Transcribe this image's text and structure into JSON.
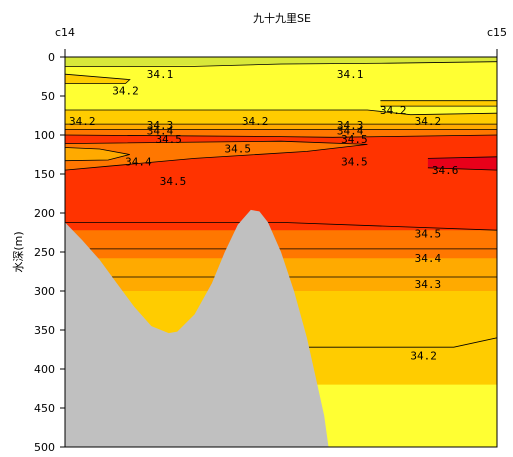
{
  "chart_data": {
    "type": "contour",
    "title": "九十九里SE",
    "ylabel": "水深(m)",
    "stations": [
      "c14",
      "c15"
    ],
    "y_ticks": [
      0,
      50,
      100,
      150,
      200,
      250,
      300,
      350,
      400,
      450,
      500
    ],
    "ylim": [
      0,
      500
    ],
    "y_inverted": true,
    "contour_levels": [
      34.1,
      34.2,
      34.3,
      34.4,
      34.5,
      34.6
    ],
    "fill_colors": {
      "lt_34.1": "#d8e83a",
      "34.1-34.2": "#ffff33",
      "34.2-34.3": "#ffcc00",
      "34.3-34.4": "#ffaa00",
      "34.4-34.5": "#ff7700",
      "34.5-34.6": "#ff3300",
      "gt_34.6": "#e8001a",
      "seafloor": "#c0c0c0"
    },
    "contour_labels": [
      {
        "text": "34.1",
        "x": 0.22,
        "depth": 22
      },
      {
        "text": "34.1",
        "x": 0.66,
        "depth": 22
      },
      {
        "text": "34.2",
        "x": 0.14,
        "depth": 43
      },
      {
        "text": "34.2",
        "x": 0.76,
        "depth": 68
      },
      {
        "text": "34.2",
        "x": 0.84,
        "depth": 82
      },
      {
        "text": "34.2",
        "x": 0.04,
        "depth": 82
      },
      {
        "text": "34.2",
        "x": 0.44,
        "depth": 82
      },
      {
        "text": "34.3",
        "x": 0.22,
        "depth": 87
      },
      {
        "text": "34.4",
        "x": 0.22,
        "depth": 94
      },
      {
        "text": "34.5",
        "x": 0.24,
        "depth": 105
      },
      {
        "text": "34.3",
        "x": 0.66,
        "depth": 87
      },
      {
        "text": "34.4",
        "x": 0.66,
        "depth": 94
      },
      {
        "text": "34.5",
        "x": 0.67,
        "depth": 105
      },
      {
        "text": "34.5",
        "x": 0.4,
        "depth": 117
      },
      {
        "text": "34.4",
        "x": 0.17,
        "depth": 134
      },
      {
        "text": "34.5",
        "x": 0.67,
        "depth": 134
      },
      {
        "text": "34.6",
        "x": 0.88,
        "depth": 145
      },
      {
        "text": "34.5",
        "x": 0.25,
        "depth": 159
      },
      {
        "text": "34.5",
        "x": 0.84,
        "depth": 226
      },
      {
        "text": "34.4",
        "x": 0.84,
        "depth": 258
      },
      {
        "text": "34.3",
        "x": 0.84,
        "depth": 291
      },
      {
        "text": "34.2",
        "x": 0.83,
        "depth": 383
      }
    ]
  }
}
